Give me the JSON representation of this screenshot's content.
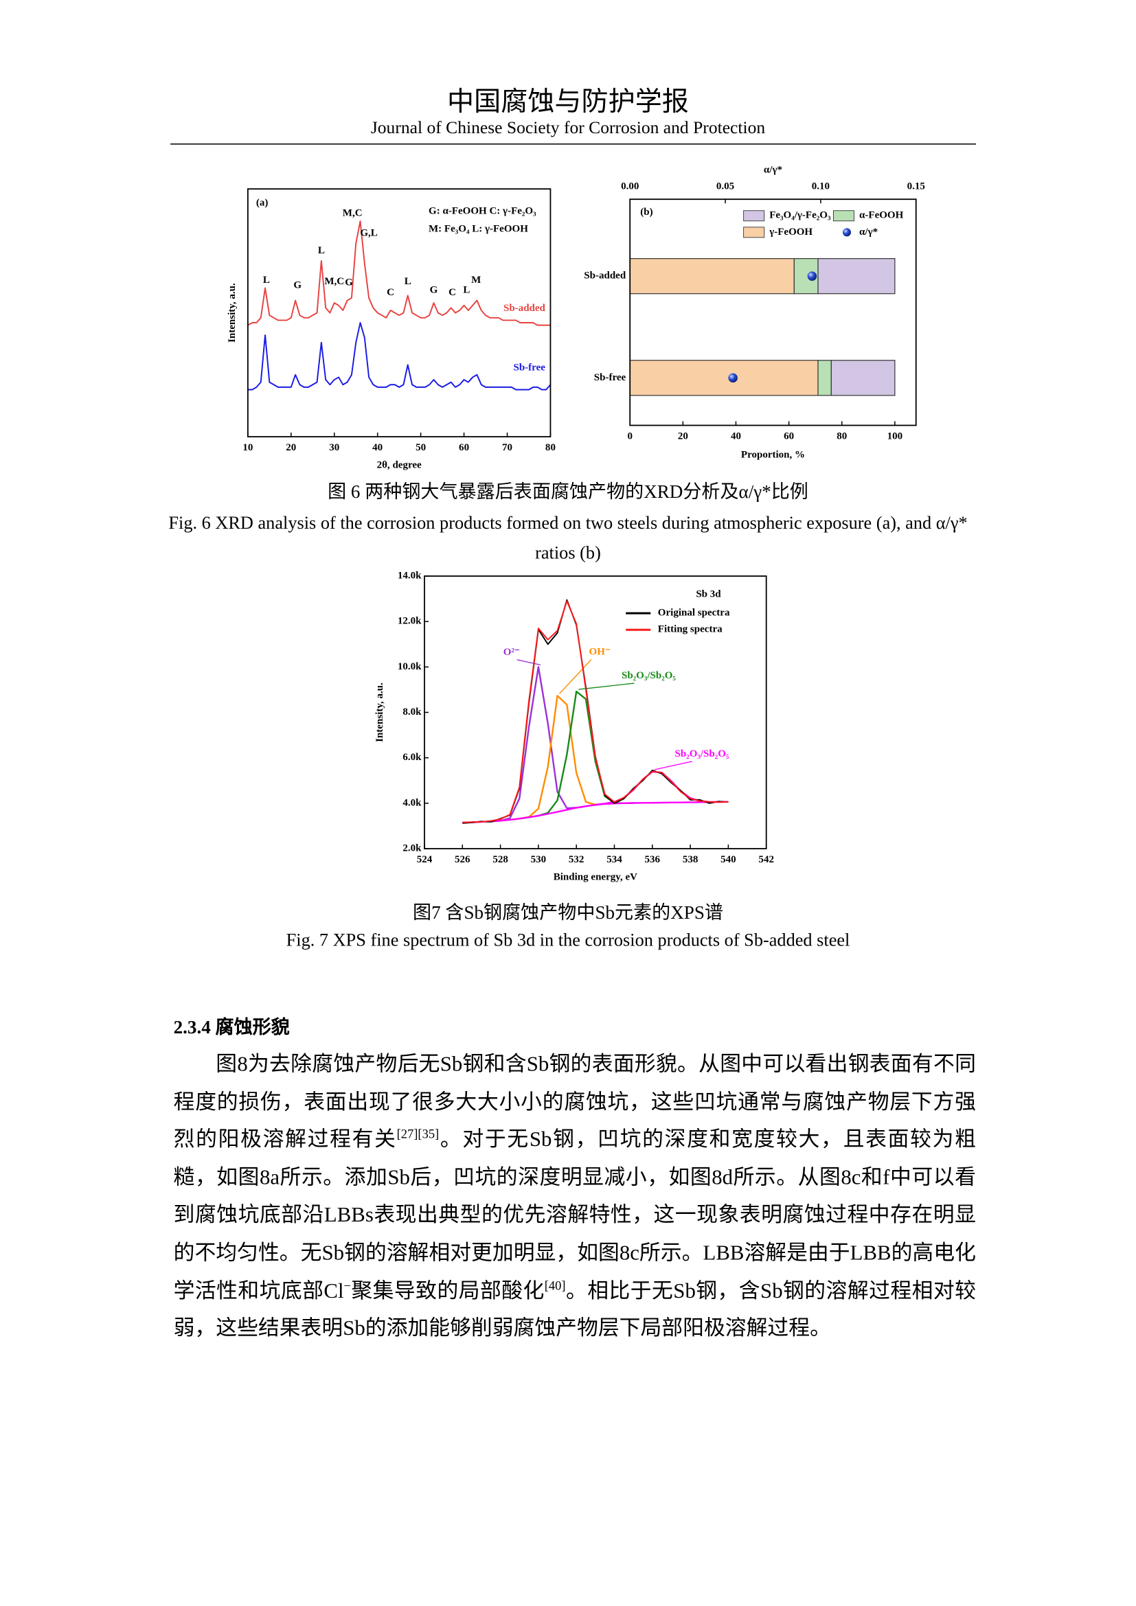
{
  "header": {
    "title_cn": "中国腐蚀与防护学报",
    "title_en": "Journal of Chinese Society for Corrosion and Protection"
  },
  "chart_data": [
    {
      "type": "line",
      "panel": "(a)",
      "xlabel": "2θ, degree",
      "ylabel": "Intensity, a.u.",
      "x": [
        10,
        11,
        12,
        13,
        14,
        15,
        16,
        17,
        18,
        19,
        20,
        21,
        22,
        23,
        24,
        25,
        26,
        27,
        28,
        29,
        30,
        31,
        32,
        33,
        34,
        35,
        36,
        37,
        38,
        39,
        40,
        41,
        42,
        43,
        44,
        45,
        46,
        47,
        48,
        49,
        50,
        51,
        52,
        53,
        54,
        55,
        56,
        57,
        58,
        59,
        60,
        61,
        62,
        63,
        64,
        65,
        66,
        67,
        68,
        69,
        70,
        71,
        72,
        73,
        74,
        75,
        76,
        77,
        78,
        79,
        80
      ],
      "xlim": [
        10,
        80
      ],
      "xticks": [
        10,
        20,
        30,
        40,
        50,
        60,
        70,
        80
      ],
      "ylim": [
        0,
        100
      ],
      "series": [
        {
          "name": "Sb-added",
          "color": "#e8423f",
          "values": [
            45,
            46,
            46,
            48,
            60,
            49,
            48,
            47,
            47,
            47,
            48,
            55,
            49,
            48,
            48,
            49,
            50,
            71,
            52,
            50,
            54,
            53,
            51,
            55,
            56,
            78,
            87,
            70,
            56,
            52,
            50,
            49,
            48,
            51,
            50,
            49,
            50,
            57,
            50,
            49,
            48,
            48,
            49,
            54,
            50,
            49,
            50,
            52,
            50,
            51,
            53,
            51,
            53,
            55,
            51,
            49,
            48,
            48,
            48,
            47,
            47,
            47,
            47,
            46,
            46,
            46,
            46,
            45,
            45,
            45,
            45
          ]
        },
        {
          "name": "Sb-free",
          "color": "#1a1ae6",
          "values": [
            19,
            19,
            20,
            22,
            41,
            22,
            21,
            20,
            20,
            20,
            20,
            25,
            21,
            20,
            20,
            21,
            22,
            38,
            23,
            21,
            23,
            24,
            21,
            22,
            25,
            38,
            46,
            40,
            24,
            21,
            20,
            20,
            20,
            21,
            21,
            20,
            21,
            29,
            21,
            20,
            20,
            20,
            21,
            23,
            21,
            20,
            21,
            22,
            20,
            21,
            23,
            22,
            24,
            25,
            21,
            20,
            20,
            20,
            20,
            20,
            20,
            20,
            19,
            19,
            19,
            19,
            20,
            20,
            19,
            19,
            21
          ]
        }
      ],
      "annotations": [
        {
          "text": "L",
          "x": 14.3,
          "y": 63
        },
        {
          "text": "G",
          "x": 21.5,
          "y": 61
        },
        {
          "text": "L",
          "x": 27,
          "y": 75
        },
        {
          "text": "M,C",
          "x": 30,
          "y": 62.5
        },
        {
          "text": "G",
          "x": 33.4,
          "y": 62
        },
        {
          "text": "M,C",
          "x": 34.2,
          "y": 90
        },
        {
          "text": "G,L",
          "x": 38,
          "y": 82
        },
        {
          "text": "C",
          "x": 43,
          "y": 58
        },
        {
          "text": "L",
          "x": 47,
          "y": 62.5
        },
        {
          "text": "G",
          "x": 53,
          "y": 59
        },
        {
          "text": "C",
          "x": 57.3,
          "y": 58
        },
        {
          "text": "L",
          "x": 60.6,
          "y": 59
        },
        {
          "text": "M",
          "x": 62.8,
          "y": 63
        }
      ],
      "key": [
        "G: α-FeOOH   C: γ-Fe₂O₃",
        "M: Fe₃O₄   L: γ-FeOOH"
      ]
    },
    {
      "type": "bar",
      "orientation": "horizontal",
      "stacked": true,
      "panel": "(b)",
      "categories": [
        "Sb-added",
        "Sb-free"
      ],
      "xlabel": "Proportion, %",
      "xlim": [
        0,
        108
      ],
      "xticks": [
        0,
        20,
        40,
        60,
        80,
        100
      ],
      "x2label": "α/γ*",
      "x2lim": [
        0,
        0.15
      ],
      "x2ticks": [
        {
          "value": 0,
          "label": "0.00"
        },
        {
          "value": 0.05,
          "label": "0.05"
        },
        {
          "value": 0.1,
          "label": "0.10"
        },
        {
          "value": 0.15,
          "label": "0.15"
        }
      ],
      "series": [
        {
          "name": "γ-FeOOH",
          "color": "#f9cfa6",
          "values": [
            62,
            71
          ]
        },
        {
          "name": "α-FeOOH",
          "color": "#b8e0b4",
          "values": [
            9,
            5
          ]
        },
        {
          "name": "Fe₃O₄/γ-Fe₂O₃",
          "color": "#d2c6e4",
          "values": [
            29,
            24
          ]
        },
        {
          "name": "α/γ*",
          "type": "scatter",
          "axis": "x2",
          "color": "#1f3fbf",
          "values": [
            0.0955,
            0.054
          ]
        }
      ],
      "legend": "upper right"
    },
    {
      "type": "line",
      "title": "Sb 3d",
      "xlabel": "Binding energy, eV",
      "ylabel": "Intensity, a.u.",
      "x": [
        526,
        526.5,
        527,
        527.5,
        528,
        528.5,
        529,
        529.5,
        530,
        530.5,
        531,
        531.5,
        532,
        532.5,
        533,
        533.5,
        534,
        534.5,
        535,
        535.5,
        536,
        536.5,
        537,
        537.5,
        538,
        538.5,
        539,
        539.5,
        540
      ],
      "xlim": [
        524,
        542
      ],
      "xticks": [
        524,
        526,
        528,
        530,
        532,
        534,
        536,
        538,
        540,
        542
      ],
      "ylim": [
        2000,
        14000
      ],
      "yticks": [
        {
          "value": 2000,
          "label": "2.0k"
        },
        {
          "value": 4000,
          "label": "4.0k"
        },
        {
          "value": 6000,
          "label": "6.0k"
        },
        {
          "value": 8000,
          "label": "8.0k"
        },
        {
          "value": 10000,
          "label": "10.0k"
        },
        {
          "value": 12000,
          "label": "12.0k"
        },
        {
          "value": 14000,
          "label": "14.0k"
        }
      ],
      "series": [
        {
          "name": "Original spectra",
          "color": "#000000",
          "values": [
            3120,
            3150,
            3200,
            3180,
            3320,
            3480,
            4650,
            8400,
            11650,
            11000,
            11500,
            12950,
            11850,
            9100,
            6050,
            4350,
            4000,
            4200,
            4650,
            5000,
            5450,
            5300,
            4900,
            4550,
            4150,
            4150,
            4000,
            4080,
            4050
          ]
        },
        {
          "name": "Fitting spectra",
          "color": "#ff1a1a",
          "values": [
            3150,
            3170,
            3180,
            3220,
            3300,
            3500,
            4700,
            8500,
            11700,
            11200,
            11600,
            12900,
            11900,
            9000,
            6000,
            4400,
            4050,
            4250,
            4600,
            5050,
            5400,
            5350,
            4950,
            4500,
            4200,
            4100,
            4060,
            4050,
            4060
          ]
        }
      ],
      "components": [
        {
          "label": "O²⁻",
          "color": "#9b30d9",
          "values": [
            3150,
            3160,
            3180,
            3200,
            3230,
            3342,
            4204,
            7356,
            10000,
            7506,
            4504,
            3782,
            3802,
            3870,
            3930,
            3970,
            3990,
            null,
            null,
            null,
            null,
            null,
            null,
            null,
            null,
            null,
            null,
            null,
            null
          ]
        },
        {
          "label": "OH⁻",
          "color": "#ff8c00",
          "values": [
            null,
            null,
            null,
            null,
            3230,
            3270,
            3320,
            3397,
            3760,
            5608,
            8733,
            8336,
            5340,
            4058,
            3938,
            3970,
            3990,
            null,
            null,
            null,
            null,
            null,
            null,
            null,
            null,
            null,
            null,
            null,
            null
          ]
        },
        {
          "label": "Sb₂O₃/Sb₂O₅",
          "color": "#178a17",
          "values": [
            null,
            null,
            null,
            null,
            null,
            null,
            3320,
            3380,
            3452,
            3576,
            4126,
            6144,
            8920,
            8585,
            5828,
            4304,
            4016,
            4001,
            4010,
            null,
            null,
            null,
            null,
            null,
            null,
            null,
            null,
            null,
            null
          ]
        },
        {
          "label": "Sb₂O₃/Sb₂O₅",
          "color": "#ff00ff",
          "values": [
            null,
            null,
            null,
            null,
            null,
            null,
            null,
            null,
            null,
            null,
            null,
            null,
            null,
            null,
            3933,
            3985,
            4060,
            4235,
            4585,
            5050,
            5386,
            5349,
            4974,
            4528,
            4229,
            4098,
            4061,
            4057,
            4060
          ]
        },
        {
          "color": "#ff00ff",
          "values": [
            3150,
            3160,
            3180,
            3200,
            3230,
            3270,
            3320,
            3380,
            3450,
            3530,
            3620,
            3710,
            3800,
            3870,
            3930,
            3970,
            3990,
            4000,
            4010,
            4015,
            4020,
            4025,
            4030,
            4035,
            4040,
            4045,
            4050,
            4055,
            4060
          ]
        }
      ],
      "legend": "upper right"
    }
  ],
  "figures": [
    {
      "caption_cn": "图 6  两种钢大气暴露后表面腐蚀产物的XRD分析及α/γ*比例",
      "caption_en": "Fig. 6 XRD analysis of the corrosion products formed on two steels during atmospheric exposure (a), and α/γ* ratios (b)"
    },
    {
      "caption_cn": "图7  含Sb钢腐蚀产物中Sb元素的XPS谱",
      "caption_en": "Fig. 7 XPS fine spectrum of Sb 3d in the corrosion products of Sb-added steel"
    }
  ],
  "section": {
    "heading": "2.3.4  腐蚀形貌",
    "paragraph": [
      "图8为去除腐蚀产物后无Sb钢和含Sb钢的表面形貌。从图中可以看出钢表面有不同程度的损伤，表面出现了很多大大小小的腐蚀坑，这些凹坑通常与腐蚀产物层下方强烈的阳极溶解过程有关",
      "[27][35]",
      "。对于无Sb钢，凹坑的深度和宽度较大，且表面较为粗糙，如图8a所示。添加Sb后，凹坑的深度明显减小，如图8d所示。从图8c和f中可以看到腐蚀坑底部沿LBBs表现出典型的优先溶解特性，这一现象表明腐蚀过程中存在明显的不均匀性。无Sb钢的溶解相对更加明显，如图8c所示。LBB溶解是由于LBB的高电化学活性和坑底部Cl",
      "−",
      "聚集导致的局部酸化",
      "[40]",
      "。相比于无Sb钢，含Sb钢的溶解过程相对较弱，这些结果表明Sb的添加能够削弱腐蚀产物层下局部阳极溶解过程。"
    ]
  }
}
